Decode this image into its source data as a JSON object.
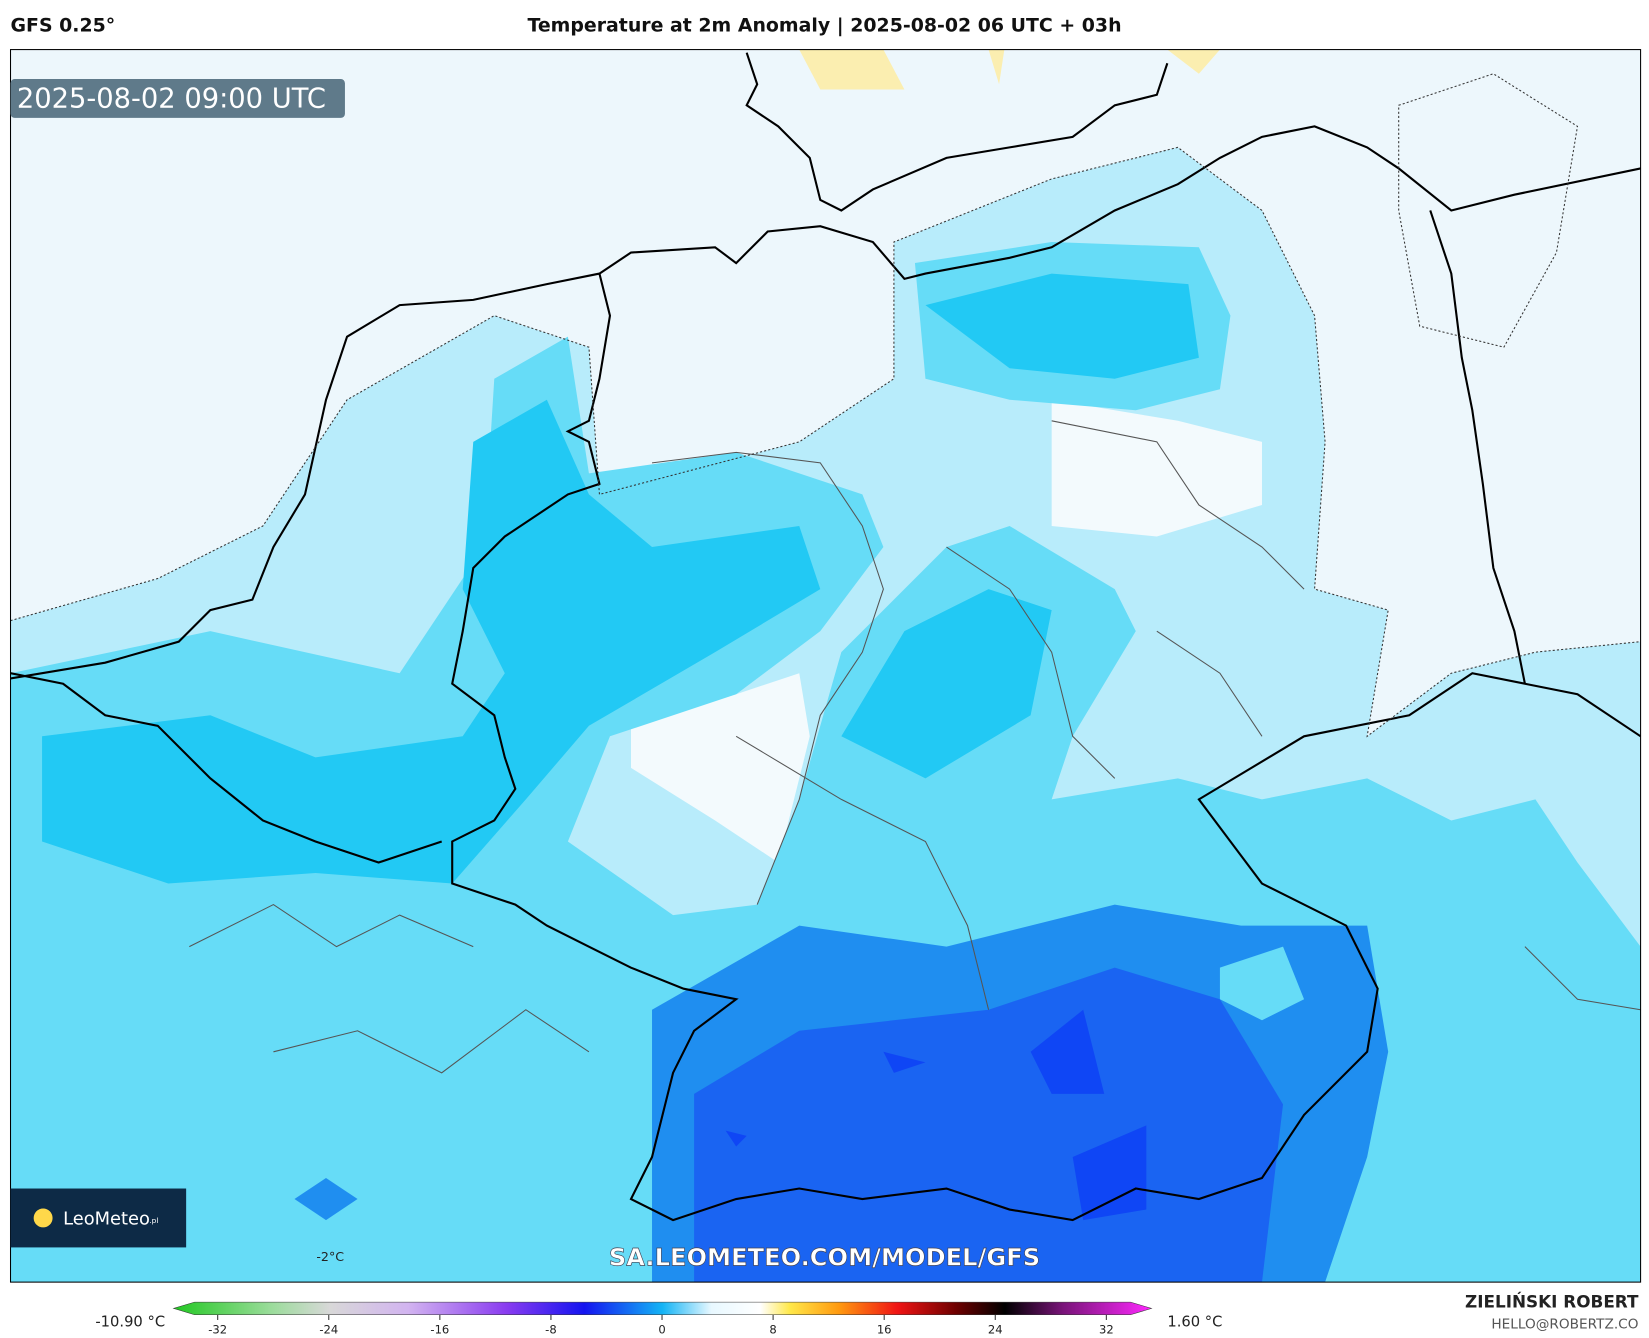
{
  "header": {
    "model": "GFS 0.25°",
    "title": "Temperature at 2m Anomaly | 2025-08-02 06 UTC + 03h"
  },
  "map": {
    "valid_time": "2025-08-02 09:00 UTC",
    "contour_label": "-2°C",
    "watermark": "SA.LEOMETEO.COM/MODEL/GFS",
    "logo": "LeoMeteo",
    "logo_suffix": ".pl"
  },
  "colorbar": {
    "min_label": "-10.90 °C",
    "max_label": "1.60 °C",
    "ticks": [
      -32,
      -24,
      -16,
      -8,
      0,
      8,
      16,
      24,
      32
    ]
  },
  "footer": {
    "author": "ZIELIŃSKI ROBERT",
    "email": "HELLO@ROBERTZ.CO"
  }
}
